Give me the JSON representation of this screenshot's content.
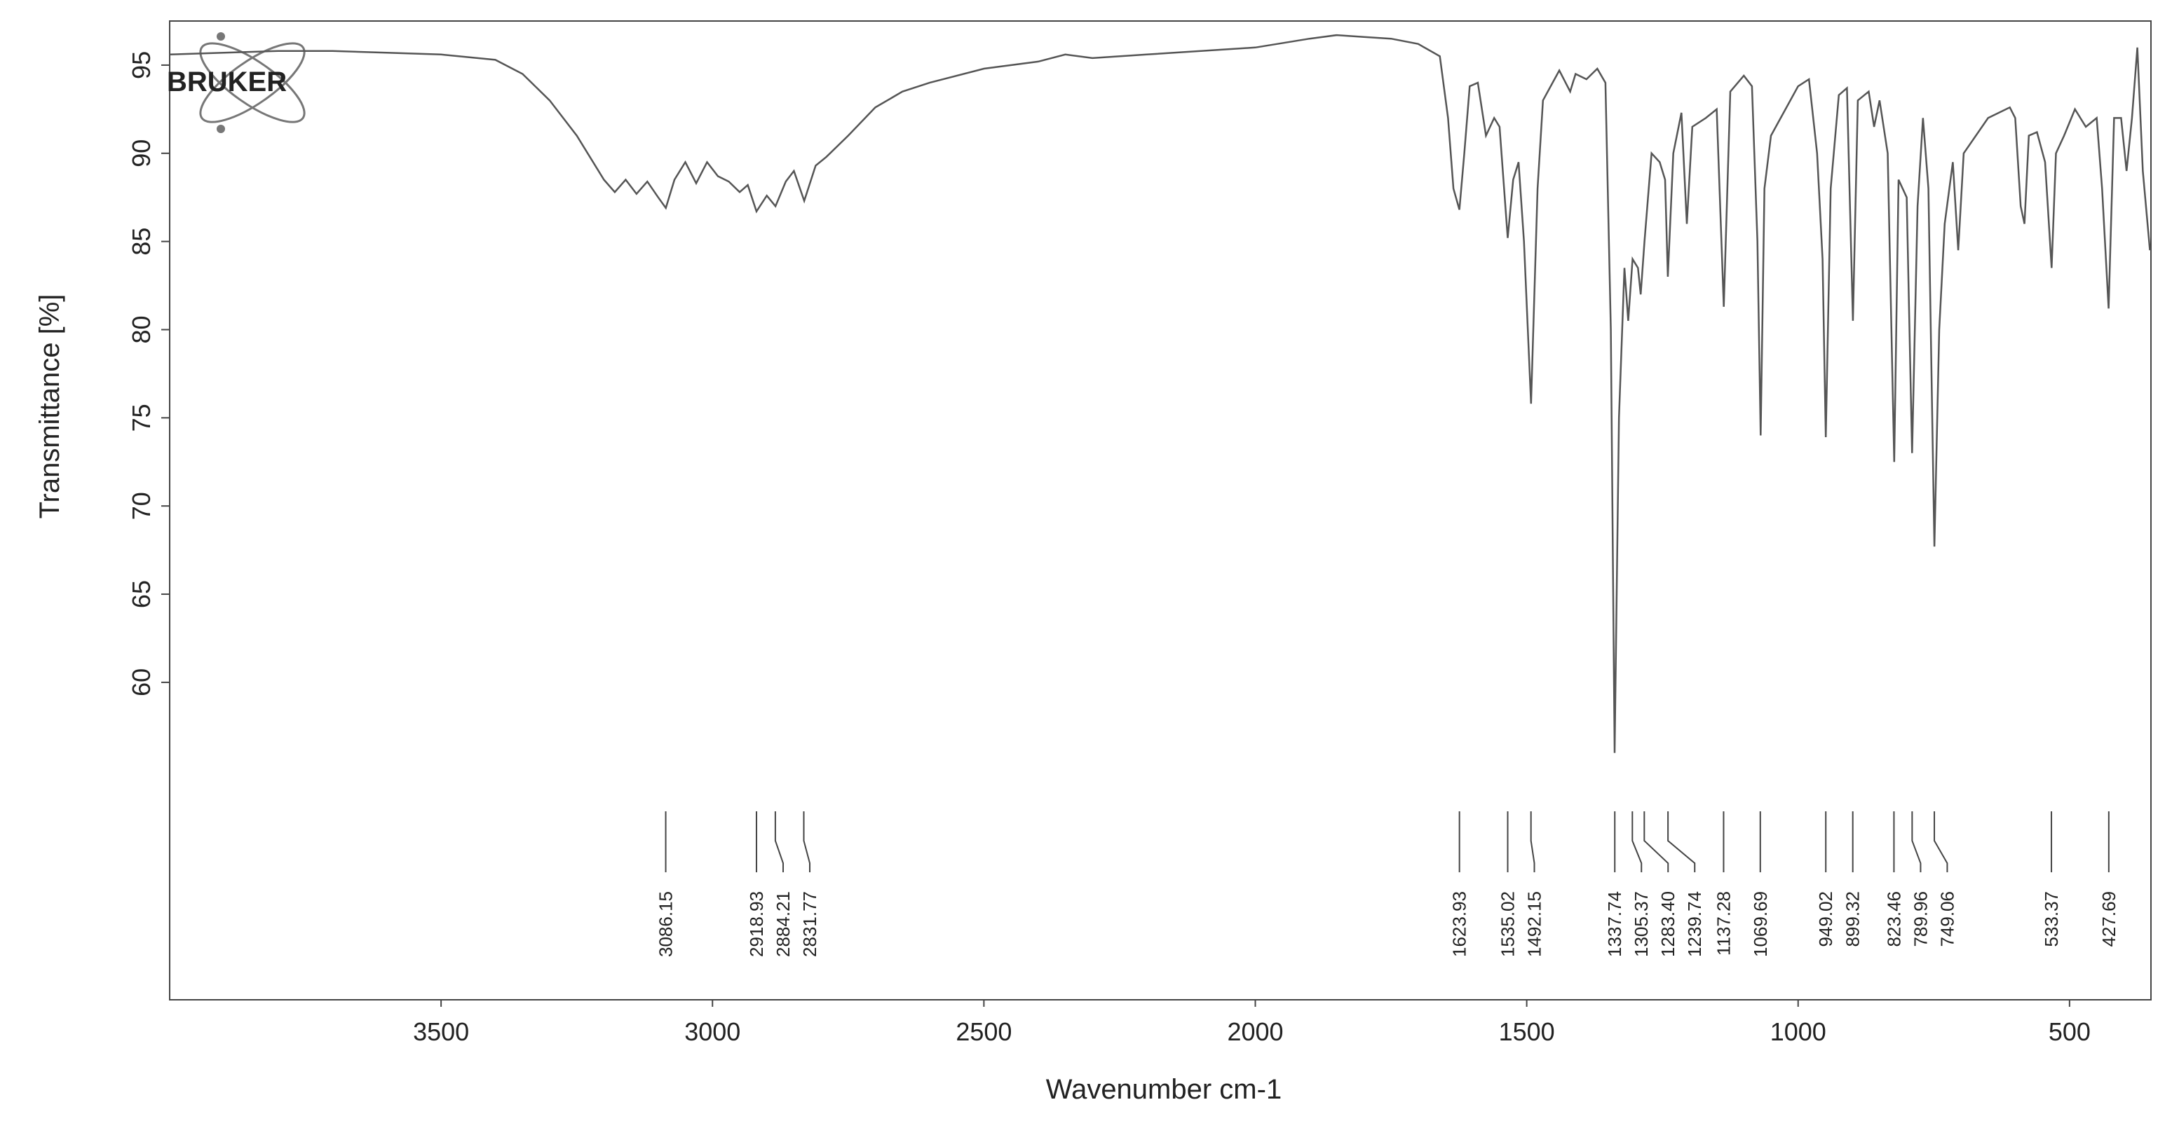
{
  "chart_data": {
    "type": "line",
    "logo": "BRUKER",
    "xlabel": "Wavenumber cm-1",
    "ylabel": "Transmittance [%]",
    "xlim": [
      4000,
      350
    ],
    "ylim": [
      42,
      97.5
    ],
    "xticks": [
      3500,
      3000,
      2500,
      2000,
      1500,
      1000,
      500
    ],
    "yticks": [
      60,
      65,
      70,
      75,
      80,
      85,
      90,
      95
    ],
    "color": "#555555",
    "x": [
      4000,
      3900,
      3800,
      3700,
      3600,
      3500,
      3400,
      3350,
      3300,
      3250,
      3200,
      3180,
      3160,
      3140,
      3120,
      3100,
      3086,
      3070,
      3050,
      3030,
      3010,
      2990,
      2970,
      2950,
      2935,
      2919,
      2900,
      2884,
      2865,
      2850,
      2831,
      2810,
      2790,
      2750,
      2700,
      2650,
      2600,
      2500,
      2400,
      2350,
      2300,
      2200,
      2100,
      2000,
      1900,
      1850,
      1800,
      1750,
      1700,
      1660,
      1645,
      1635,
      1624,
      1615,
      1605,
      1590,
      1575,
      1560,
      1550,
      1535,
      1525,
      1515,
      1505,
      1492,
      1480,
      1470,
      1440,
      1420,
      1410,
      1390,
      1370,
      1355,
      1345,
      1338,
      1330,
      1320,
      1313,
      1305,
      1295,
      1290,
      1283,
      1270,
      1255,
      1245,
      1240,
      1230,
      1215,
      1205,
      1195,
      1170,
      1150,
      1137,
      1125,
      1100,
      1085,
      1075,
      1069,
      1062,
      1050,
      1000,
      980,
      965,
      955,
      949,
      940,
      925,
      910,
      899,
      890,
      870,
      860,
      850,
      835,
      823,
      815,
      800,
      790,
      780,
      770,
      760,
      749,
      740,
      730,
      715,
      705,
      695,
      650,
      610,
      600,
      590,
      583,
      575,
      560,
      545,
      533,
      525,
      510,
      490,
      470,
      450,
      440,
      428,
      418,
      405,
      395,
      385,
      375,
      365,
      352
    ],
    "values": [
      95.6,
      95.7,
      95.8,
      95.8,
      95.7,
      95.6,
      95.3,
      94.5,
      93,
      91,
      88.5,
      87.8,
      88.5,
      87.7,
      88.4,
      87.5,
      86.9,
      88.5,
      89.5,
      88.3,
      89.5,
      88.7,
      88.4,
      87.8,
      88.2,
      86.7,
      87.6,
      87.0,
      88.4,
      89,
      87.3,
      89.3,
      89.8,
      91,
      92.6,
      93.5,
      94,
      94.8,
      95.2,
      95.6,
      95.4,
      95.6,
      95.8,
      96,
      96.5,
      96.7,
      96.6,
      96.5,
      96.2,
      95.5,
      92,
      88,
      86.8,
      90,
      93.8,
      94,
      91,
      92,
      91.5,
      85.2,
      88.5,
      89.5,
      85,
      75.8,
      88,
      93,
      94.7,
      93.5,
      94.5,
      94.2,
      94.8,
      94,
      80,
      56,
      75,
      83.5,
      80.5,
      84,
      83.5,
      82,
      85,
      90,
      89.5,
      88.5,
      83,
      90,
      92.3,
      86,
      91.5,
      92,
      92.5,
      81.3,
      93.5,
      94.4,
      93.8,
      85,
      74,
      88,
      91,
      93.8,
      94.2,
      90,
      84,
      73.9,
      88,
      93.3,
      93.7,
      80.5,
      93,
      93.5,
      91.5,
      93,
      90,
      72.5,
      88.5,
      87.5,
      73,
      87,
      92,
      88,
      67.7,
      80,
      86,
      89.5,
      84.5,
      90,
      92,
      92.6,
      92,
      87,
      86,
      91,
      91.2,
      89.5,
      83.5,
      90,
      91,
      92.5,
      91.5,
      92,
      88,
      81.2,
      92,
      92,
      89,
      92,
      96,
      89,
      84.5
    ],
    "peaks": [
      3086.15,
      2918.93,
      2884.21,
      2831.77,
      1623.93,
      1535.02,
      1492.15,
      1337.74,
      1305.37,
      {
        "value": 1283.4,
        "label": "1283.40"
      },
      1239.74,
      1137.28,
      1069.69,
      949.02,
      899.32,
      823.46,
      789.96,
      749.06,
      533.37,
      427.69
    ]
  }
}
